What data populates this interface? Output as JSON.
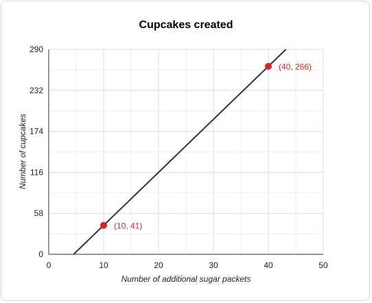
{
  "chart_data": {
    "type": "line",
    "title": "Cupcakes created",
    "xlabel": "Number of additional sugar packets",
    "ylabel": "Number of cupcakes",
    "xlim": [
      0,
      50
    ],
    "ylim": [
      0,
      290
    ],
    "x_ticks": [
      0,
      10,
      20,
      30,
      40,
      50
    ],
    "y_ticks": [
      0,
      58,
      116,
      174,
      232,
      290
    ],
    "grid": true,
    "line": {
      "x": [
        4.53,
        43.2
      ],
      "y": [
        0,
        290
      ],
      "color": "#333333"
    },
    "points": [
      {
        "x": 10,
        "y": 41,
        "label": "(10, 41)"
      },
      {
        "x": 40,
        "y": 266,
        "label": "(40, 266)"
      }
    ],
    "point_color": "#d62728"
  }
}
